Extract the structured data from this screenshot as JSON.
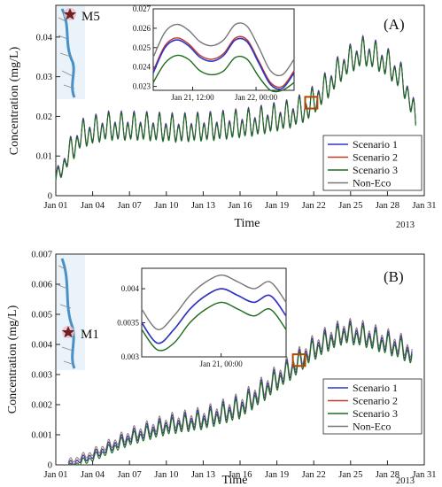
{
  "colors": {
    "Scenario 1": "#2b35c8",
    "Scenario 2": "#c0392b",
    "Scenario 3": "#1d6b1d",
    "Non-Eco": "#777777",
    "highlight": "#b34700"
  },
  "chart_data": [
    {
      "type": "line",
      "panel_label": "(A)",
      "station": "M5",
      "ylabel": "Concentration (mg/L)",
      "xlabel": "Time",
      "year_label": "2013",
      "ylim": [
        0,
        0.048
      ],
      "yticks": [
        "0",
        "0.01",
        "0.02",
        "0.03",
        "0.04"
      ],
      "xticks": [
        "Jan 01",
        "Jan 04",
        "Jan 07",
        "Jan 10",
        "Jan 13",
        "Jan 16",
        "Jan 19",
        "Jan 22",
        "Jan 25",
        "Jan 28",
        "Jan 31"
      ],
      "xlim_days": [
        1,
        31
      ],
      "legend": [
        "Scenario 1",
        "Scenario 2",
        "Scenario 3",
        "Non-Eco"
      ],
      "legend_position": "lower-right",
      "grid": false,
      "trend": {
        "x_days": [
          1,
          2,
          3,
          5,
          8,
          11,
          14,
          17,
          20,
          21.5,
          23,
          24.5,
          26,
          27,
          28,
          29,
          29.8,
          30.3
        ],
        "y": [
          0.004,
          0.01,
          0.015,
          0.017,
          0.017,
          0.0165,
          0.017,
          0.018,
          0.02,
          0.022,
          0.027,
          0.033,
          0.036,
          0.035,
          0.033,
          0.03,
          0.025,
          0.018
        ]
      },
      "tidal_amplitude": 0.004,
      "series_offsets": {
        "Scenario 1": 0.0002,
        "Scenario 2": 0.0003,
        "Scenario 3": -0.0002,
        "Non-Eco": 0.0004
      },
      "highlight_window_days": [
        21.3,
        22.3
      ],
      "inset": {
        "xticks": [
          "Jan 21, 12:00",
          "Jan 22, 00:00"
        ],
        "yticks": [
          "0.023",
          "0.024",
          "0.025",
          "0.026",
          "0.027"
        ],
        "ylim": [
          0.0228,
          0.027
        ],
        "series": [
          {
            "name": "Non-Eco",
            "y": [
              0.0245,
              0.0258,
              0.0262,
              0.0259,
              0.0253,
              0.0251,
              0.0254,
              0.0262,
              0.0261,
              0.025,
              0.0238,
              0.0236,
              0.0244
            ]
          },
          {
            "name": "Scenario 2",
            "y": [
              0.0238,
              0.0251,
              0.0255,
              0.0252,
              0.0246,
              0.0244,
              0.0247,
              0.0255,
              0.0254,
              0.0243,
              0.0232,
              0.023,
              0.0238
            ]
          },
          {
            "name": "Scenario 1",
            "y": [
              0.0237,
              0.025,
              0.0254,
              0.0251,
              0.0245,
              0.0243,
              0.0246,
              0.0254,
              0.0253,
              0.0242,
              0.0231,
              0.0229,
              0.0237
            ]
          },
          {
            "name": "Scenario 3",
            "y": [
              0.0232,
              0.0242,
              0.0246,
              0.0244,
              0.0238,
              0.0236,
              0.0238,
              0.0245,
              0.0244,
              0.0235,
              0.0228,
              0.0228,
              0.0232
            ]
          }
        ]
      }
    },
    {
      "type": "line",
      "panel_label": "(B)",
      "station": "M1",
      "ylabel": "Concentration (mg/L)",
      "xlabel": "Time",
      "year_label": "2013",
      "ylim": [
        0,
        0.007
      ],
      "yticks": [
        "0",
        "0.001",
        "0.002",
        "0.003",
        "0.004",
        "0.005",
        "0.006",
        "0.007"
      ],
      "xticks": [
        "Jan 01",
        "Jan 04",
        "Jan 07",
        "Jan 10",
        "Jan 13",
        "Jan 16",
        "Jan 19",
        "Jan 22",
        "Jan 25",
        "Jan 28",
        "Jan 31"
      ],
      "xlim_days": [
        1,
        31
      ],
      "legend": [
        "Scenario 1",
        "Scenario 2",
        "Scenario 3",
        "Non-Eco"
      ],
      "legend_position": "lower-right",
      "grid": false,
      "trend": {
        "x_days": [
          2,
          4,
          7,
          10,
          13,
          16,
          18,
          19.5,
          20.5,
          21.5,
          23,
          24.5,
          26,
          27.5,
          29,
          30
        ],
        "y": [
          0.0,
          0.0003,
          0.0009,
          0.0013,
          0.0015,
          0.0019,
          0.0025,
          0.003,
          0.0033,
          0.0037,
          0.0041,
          0.0044,
          0.0043,
          0.0041,
          0.0039,
          0.0037
        ]
      },
      "tidal_amplitude": 0.0004,
      "series_offsets": {
        "Scenario 1": 0.0,
        "Scenario 2": 2e-05,
        "Scenario 3": -8e-05,
        "Non-Eco": 0.0001
      },
      "highlight_window_days": [
        20.3,
        21.3
      ],
      "inset": {
        "xticks": [
          "Jan 21, 00:00"
        ],
        "yticks": [
          "0.003",
          "0.0035",
          "0.004"
        ],
        "ylim": [
          0.003,
          0.0043
        ],
        "series": [
          {
            "name": "Non-Eco",
            "y": [
              0.0037,
              0.0034,
              0.0036,
              0.0039,
              0.0041,
              0.0042,
              0.0041,
              0.004,
              0.0041,
              0.0038
            ]
          },
          {
            "name": "Scenario 2",
            "y": [
              0.0035,
              0.0032,
              0.0034,
              0.0037,
              0.0039,
              0.004,
              0.0039,
              0.0038,
              0.0039,
              0.0036
            ]
          },
          {
            "name": "Scenario 1",
            "y": [
              0.0035,
              0.0032,
              0.0034,
              0.0037,
              0.0039,
              0.004,
              0.0039,
              0.0038,
              0.0039,
              0.0036
            ]
          },
          {
            "name": "Scenario 3",
            "y": [
              0.0034,
              0.0031,
              0.0032,
              0.0035,
              0.0037,
              0.0038,
              0.0037,
              0.0036,
              0.0037,
              0.0034
            ]
          }
        ]
      }
    }
  ]
}
